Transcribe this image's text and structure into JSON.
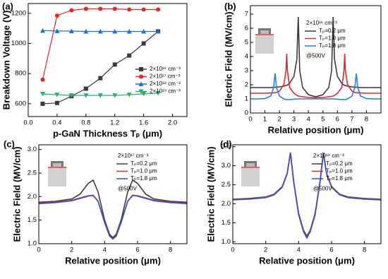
{
  "chart_data": [
    {
      "type": "line",
      "title": "(a)",
      "x_label": "p-GaN Thickness Tₚ (μm)",
      "y_label": "Breakdown Voltage (V)",
      "x": [
        0.2,
        0.4,
        0.6,
        0.8,
        1.0,
        1.2,
        1.4,
        1.6,
        1.8
      ],
      "series": [
        {
          "name": "2×10¹⁶ cm⁻³",
          "color": "#3a3a3a",
          "marker": "square",
          "values": [
            600,
            605,
            650,
            700,
            770,
            860,
            920,
            1000,
            1080
          ]
        },
        {
          "name": "2×10¹⁷ cm⁻³",
          "color": "#e8262a",
          "marker": "circle",
          "values": [
            760,
            1185,
            1220,
            1230,
            1230,
            1230,
            1225,
            1225,
            1225
          ]
        },
        {
          "name": "2×10¹⁸ cm⁻³",
          "color": "#1f6fd6",
          "marker": "triangle-up",
          "values": [
            1085,
            1083,
            1082,
            1080,
            1080,
            1080,
            1080,
            1080,
            1080
          ]
        },
        {
          "name": "2×10¹⁹ cm⁻³",
          "color": "#2ab36a",
          "marker": "triangle-down",
          "values": [
            665,
            660,
            655,
            655,
            655,
            655,
            660,
            665,
            670
          ]
        }
      ],
      "xlim": [
        0,
        2.2
      ],
      "ylim": [
        515,
        1265
      ],
      "xticks": [
        {
          "value": 0,
          "label": "0.0"
        },
        0.4,
        0.8,
        1.2,
        1.6,
        {
          "value": 2,
          "label": "2.0"
        }
      ],
      "yticks": [
        600,
        800,
        1000,
        1200
      ],
      "legend": "lower right"
    },
    {
      "type": "line",
      "title": "(b)",
      "x_label": "Relative position (μm)",
      "y_label": "Electric Field (MV/cm)",
      "annotations": [
        "2×10¹⁶ cm⁻³",
        "@500V"
      ],
      "x": [
        0,
        0.5,
        1,
        1.4,
        1.6,
        1.7,
        1.8,
        2.0,
        2.3,
        2.45,
        2.5,
        2.55,
        2.7,
        3.0,
        3.2,
        3.3,
        3.4,
        3.6,
        4.0,
        4.5,
        5.0,
        5.4,
        5.6,
        5.7,
        5.8,
        6.0,
        6.3,
        6.45,
        6.5,
        6.55,
        6.7,
        7.0,
        7.2,
        7.3,
        7.4,
        7.6,
        8.0,
        8.5,
        9.0
      ],
      "series": [
        {
          "name": "Tₚ=0.2 μm",
          "color": "#3a3a3a",
          "values": [
            1.8,
            1.8,
            1.8,
            1.8,
            1.82,
            1.82,
            1.83,
            1.85,
            1.9,
            1.95,
            1.96,
            1.98,
            2.1,
            2.6,
            3.8,
            6.8,
            3.0,
            1.8,
            1.3,
            1.15,
            1.3,
            1.8,
            3.0,
            6.8,
            3.8,
            2.6,
            2.1,
            1.98,
            1.96,
            1.95,
            1.9,
            1.85,
            1.83,
            1.82,
            1.82,
            1.8,
            1.8,
            1.8,
            1.8
          ]
        },
        {
          "name": "Tₚ=1.0 μm",
          "color": "#e8262a",
          "values": [
            1.4,
            1.4,
            1.4,
            1.42,
            1.43,
            1.44,
            1.45,
            1.55,
            2.0,
            3.0,
            4.2,
            3.0,
            1.8,
            1.4,
            1.25,
            1.2,
            1.18,
            1.15,
            1.1,
            1.08,
            1.1,
            1.15,
            1.18,
            1.2,
            1.25,
            1.4,
            1.8,
            3.0,
            4.2,
            3.0,
            2.0,
            1.55,
            1.45,
            1.44,
            1.43,
            1.42,
            1.4,
            1.4,
            1.4
          ]
        },
        {
          "name": "Tₚ=1.8 μm",
          "color": "#2a7de1",
          "values": [
            1.0,
            1.0,
            1.02,
            1.2,
            1.8,
            2.8,
            1.8,
            1.2,
            1.0,
            0.95,
            0.95,
            0.95,
            0.95,
            0.98,
            1.0,
            1.0,
            1.0,
            1.0,
            1.0,
            1.0,
            1.0,
            1.0,
            1.0,
            1.0,
            1.0,
            0.98,
            0.95,
            0.95,
            0.95,
            0.95,
            1.0,
            1.2,
            1.8,
            2.8,
            1.8,
            1.2,
            1.02,
            1.0,
            1.0
          ]
        }
      ],
      "xlim": [
        0,
        9
      ],
      "ylim": [
        0,
        7.6
      ],
      "xticks": [
        0,
        1,
        2,
        3,
        4,
        5,
        6,
        7,
        8
      ],
      "yticks": [
        0,
        1,
        2,
        3,
        4,
        5,
        6,
        7
      ],
      "legend": "upper right"
    },
    {
      "type": "line",
      "title": "(c)",
      "x_label": "Relative position (μm)",
      "y_label": "Electric Field (MV/cm)",
      "annotations": [
        "2×10¹⁷ cm⁻³",
        "@500V"
      ],
      "x": [
        0,
        1,
        2,
        2.5,
        3,
        3.3,
        3.6,
        4.0,
        4.3,
        4.5,
        4.7,
        5.0,
        5.4,
        5.7,
        6.0,
        6.5,
        7,
        8,
        9
      ],
      "series": [
        {
          "name": "Tₚ=0.2 μm",
          "color": "#3a3a3a",
          "values": [
            1.88,
            1.9,
            1.95,
            2.05,
            2.28,
            2.35,
            2.1,
            1.5,
            1.2,
            1.13,
            1.2,
            1.5,
            2.1,
            2.35,
            2.28,
            2.05,
            1.95,
            1.9,
            1.88
          ]
        },
        {
          "name": "Tₚ=1.0 μm",
          "color": "#c0392b",
          "values": [
            1.86,
            1.88,
            1.92,
            1.97,
            2.02,
            2.02,
            1.9,
            1.45,
            1.17,
            1.1,
            1.17,
            1.45,
            1.9,
            2.02,
            2.02,
            1.97,
            1.92,
            1.88,
            1.86
          ]
        },
        {
          "name": "Tₚ=1.8 μm",
          "color": "#3b4fc8",
          "values": [
            1.85,
            1.87,
            1.91,
            1.96,
            2.01,
            2.03,
            1.9,
            1.45,
            1.16,
            1.1,
            1.16,
            1.45,
            1.9,
            2.03,
            2.01,
            1.96,
            1.91,
            1.87,
            1.85
          ]
        }
      ],
      "xlim": [
        0,
        9
      ],
      "ylim": [
        1.0,
        3.1
      ],
      "xticks": [
        0,
        2,
        4,
        6,
        8
      ],
      "yticks": [
        {
          "value": 1,
          "label": "1.0"
        },
        1.5,
        {
          "value": 2,
          "label": "2.0"
        },
        2.5,
        {
          "value": 3,
          "label": "3.0"
        }
      ],
      "legend": "upper right"
    },
    {
      "type": "line",
      "title": "(d)",
      "x_label": "Relative position (μm)",
      "y_label": "Electric Field (MV/cm)",
      "annotations": [
        "2×10¹⁸ cm⁻³",
        "@500V"
      ],
      "x": [
        0,
        1,
        2,
        2.5,
        3,
        3.3,
        3.5,
        3.7,
        4.0,
        4.3,
        4.5,
        4.7,
        5.0,
        5.3,
        5.5,
        5.7,
        6,
        6.5,
        7,
        8,
        9
      ],
      "series": [
        {
          "name": "Tₚ=0.2 μm",
          "color": "#3a3a3a",
          "values": [
            2.12,
            2.14,
            2.18,
            2.25,
            2.45,
            2.8,
            3.35,
            2.6,
            1.75,
            1.3,
            1.15,
            1.3,
            1.75,
            2.6,
            3.35,
            2.8,
            2.45,
            2.25,
            2.18,
            2.14,
            2.12
          ]
        },
        {
          "name": "Tₚ=1.0 μm",
          "color": "#c0392b",
          "values": [
            2.11,
            2.13,
            2.17,
            2.24,
            2.44,
            2.79,
            3.34,
            2.58,
            1.73,
            1.28,
            1.12,
            1.28,
            1.73,
            2.58,
            3.34,
            2.79,
            2.44,
            2.24,
            2.17,
            2.13,
            2.11
          ]
        },
        {
          "name": "Tₚ=1.8 μm",
          "color": "#3b4fc8",
          "values": [
            2.1,
            2.12,
            2.16,
            2.23,
            2.43,
            2.78,
            3.33,
            2.56,
            1.71,
            1.26,
            1.1,
            1.26,
            1.71,
            2.56,
            3.33,
            2.78,
            2.43,
            2.23,
            2.16,
            2.12,
            2.1
          ]
        }
      ],
      "xlim": [
        0,
        9
      ],
      "ylim": [
        0.95,
        3.55
      ],
      "xticks": [
        0,
        2,
        4,
        6,
        8
      ],
      "yticks": [
        {
          "value": 1,
          "label": "1.0"
        },
        1.5,
        {
          "value": 2,
          "label": "2.0"
        },
        2.5,
        {
          "value": 3,
          "label": "3.0"
        },
        3.5
      ],
      "legend": "upper right"
    }
  ]
}
